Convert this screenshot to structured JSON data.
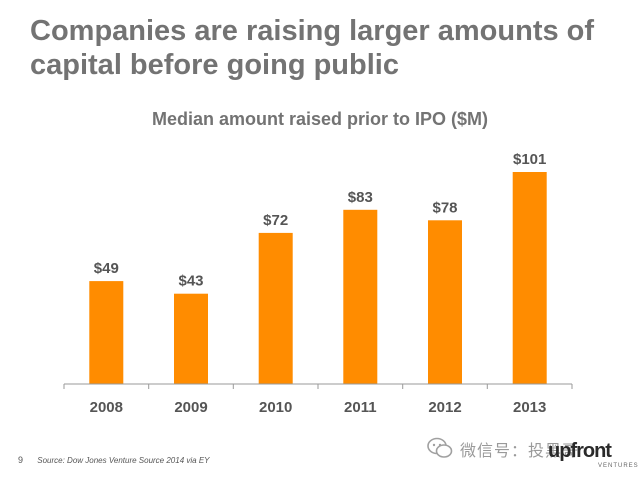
{
  "slide": {
    "title": "Companies are raising larger amounts of capital before going public",
    "page_number": "9",
    "source": "Source: Dow Jones Venture Source 2014 via EY"
  },
  "watermark": {
    "text": "微信号：投黑哥",
    "brand": "upfront",
    "brand_sub": "VENTURES"
  },
  "colors": {
    "bar": "#FF8C00",
    "title_gray": "#737373",
    "axis": "#9a9a9a",
    "label": "#555555"
  },
  "chart_data": {
    "type": "bar",
    "title": "Median amount raised prior to IPO ($M)",
    "categories": [
      "2008",
      "2009",
      "2010",
      "2011",
      "2012",
      "2013"
    ],
    "values": [
      49,
      43,
      72,
      83,
      78,
      101
    ],
    "data_labels": [
      "$49",
      "$43",
      "$72",
      "$83",
      "$78",
      "$101"
    ],
    "xlabel": "",
    "ylabel": "",
    "ylim": [
      0,
      110
    ],
    "grid": false,
    "legend": "none"
  }
}
